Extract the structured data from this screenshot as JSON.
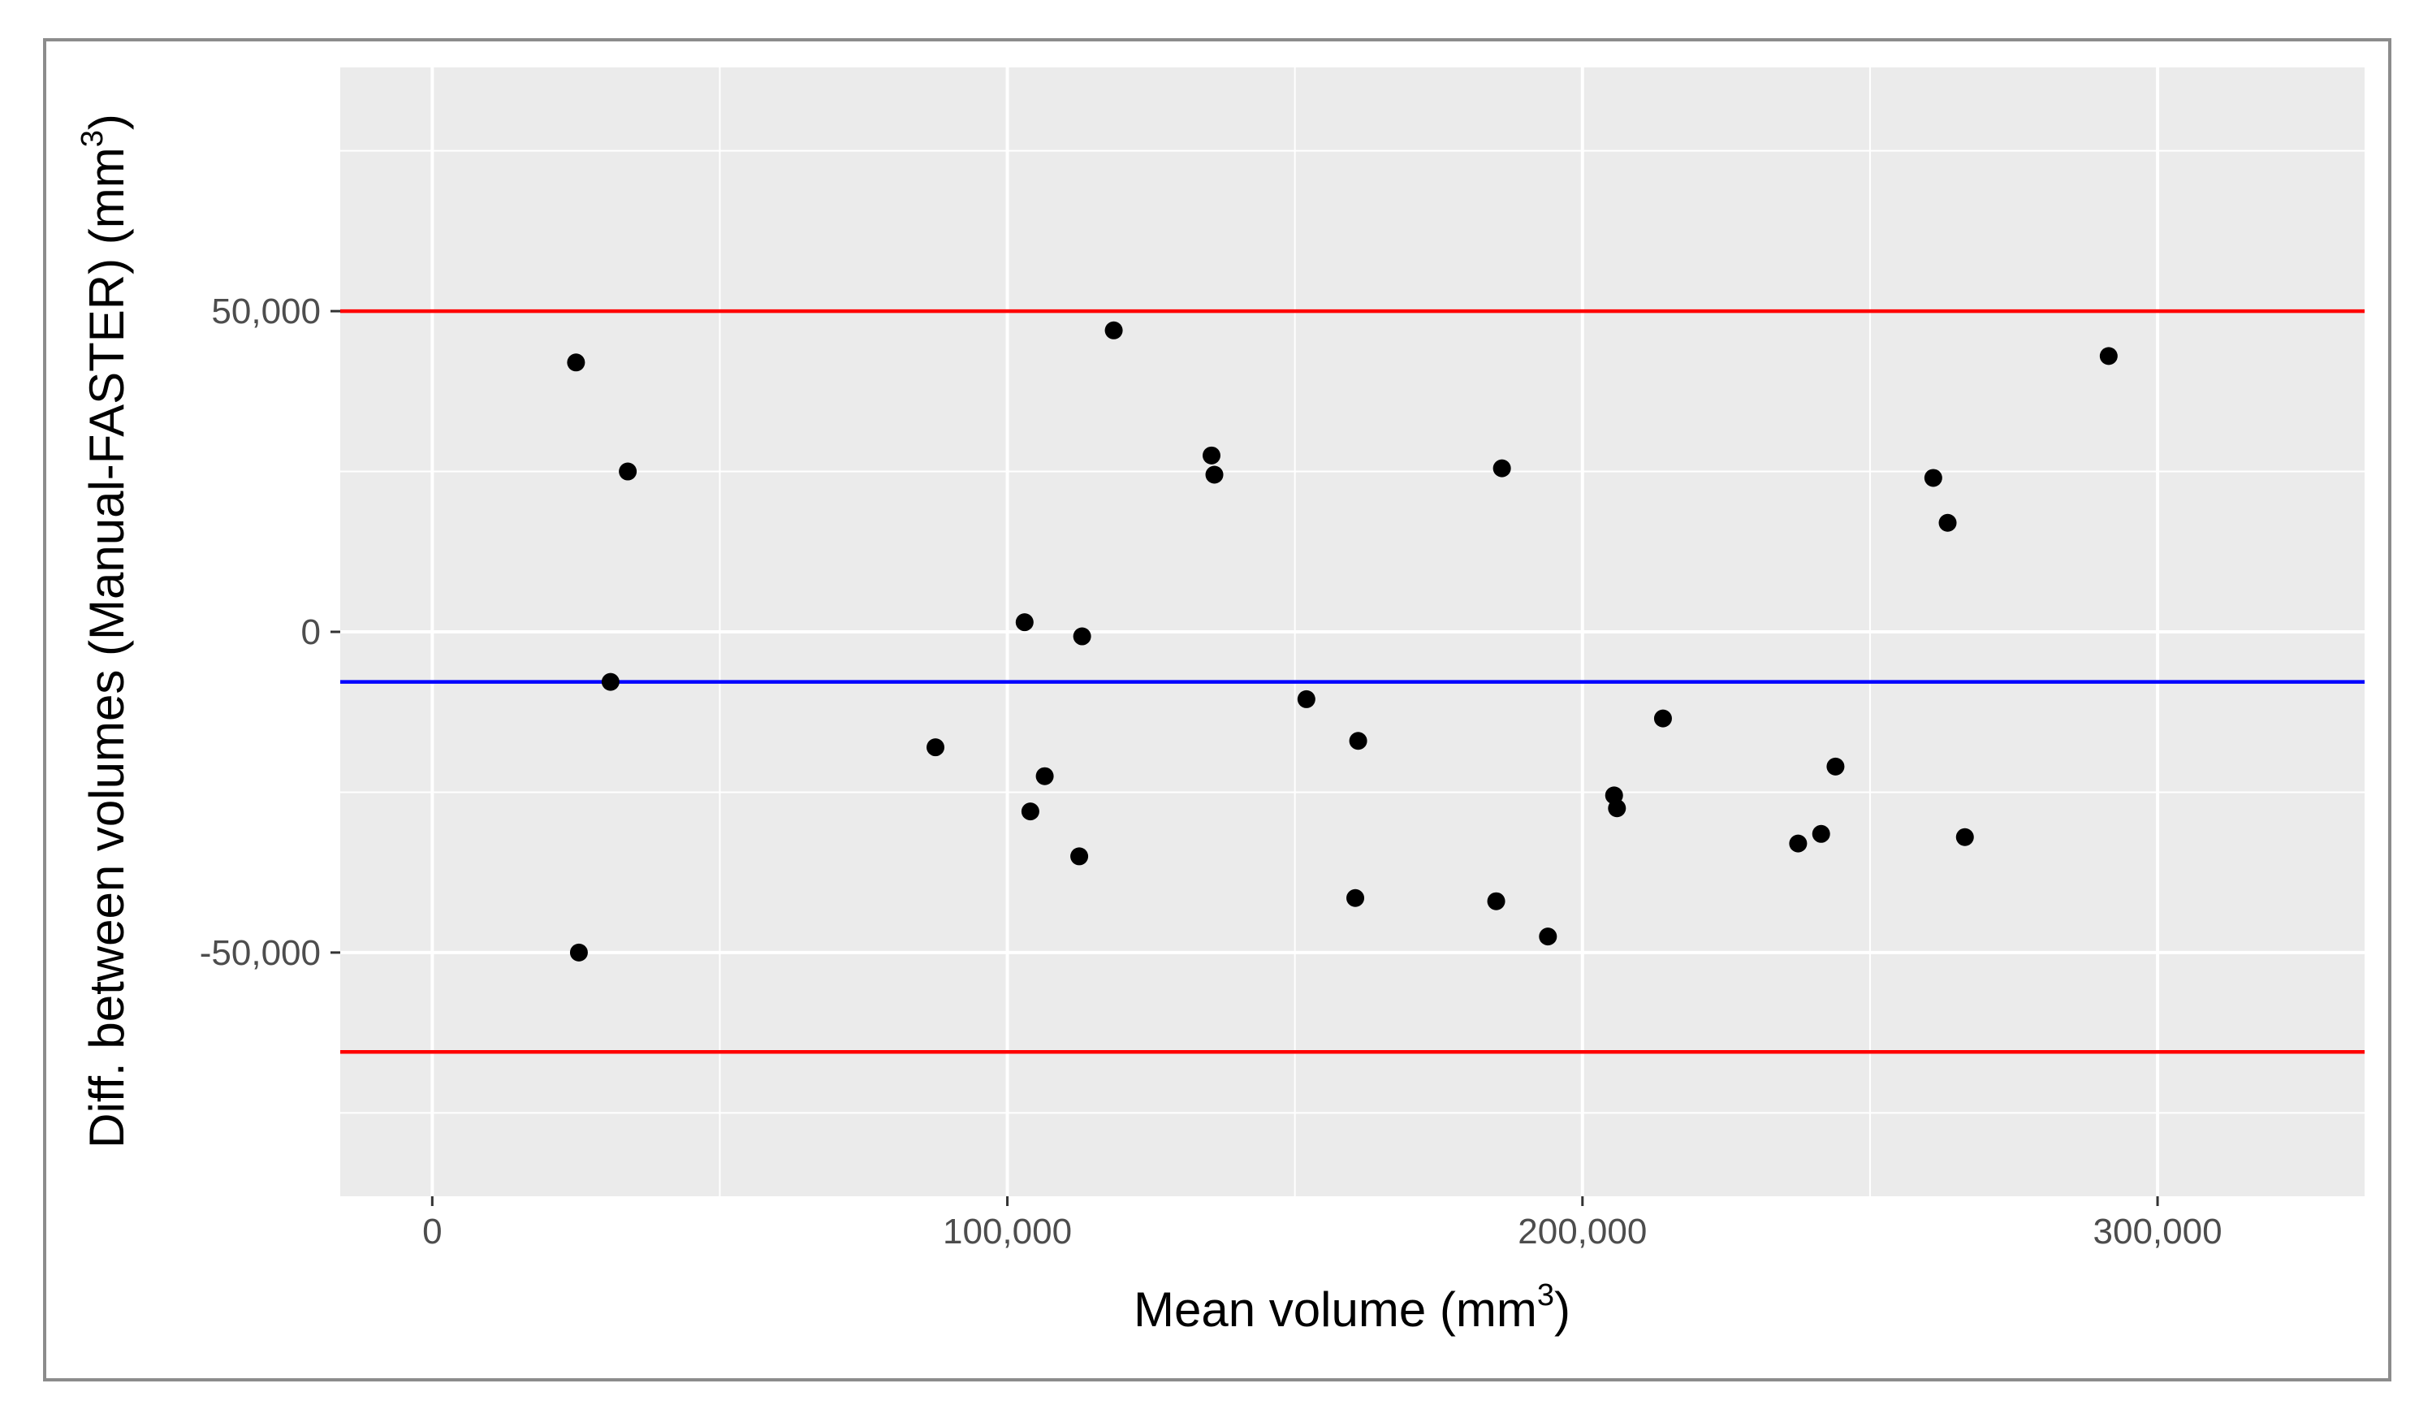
{
  "chart_data": {
    "type": "scatter",
    "xlabel": "Mean volume",
    "xlabel_unit": "(mm",
    "xlabel_exp": "3",
    "xlabel_close": ")",
    "ylabel": "Diff. between volumes (Manual-FASTER)",
    "ylabel_unit": "(mm",
    "ylabel_exp": "3",
    "ylabel_close": ")",
    "xlim": [
      -16000,
      336000
    ],
    "ylim": [
      -88000,
      88000
    ],
    "x_ticks": [
      0,
      100000,
      200000,
      300000
    ],
    "x_tick_labels": [
      "0",
      "100,000",
      "200,000",
      "300,000"
    ],
    "y_ticks": [
      -50000,
      0,
      50000
    ],
    "y_tick_labels": [
      "-50,000",
      "0",
      "50,000"
    ],
    "x_minor_breaks": [
      50000,
      150000,
      250000
    ],
    "y_minor_breaks": [
      -75000,
      -25000,
      25000,
      75000
    ],
    "grid": true,
    "panel_background": "#ebebeb",
    "reference_lines": [
      {
        "y": 50000,
        "color": "#ff0000"
      },
      {
        "y": -7800,
        "color": "#0000ff"
      },
      {
        "y": -65500,
        "color": "#ff0000"
      }
    ],
    "points": [
      {
        "x": 25000,
        "y": 42000
      },
      {
        "x": 34000,
        "y": 25000
      },
      {
        "x": 31000,
        "y": -7800
      },
      {
        "x": 25500,
        "y": -50000
      },
      {
        "x": 87500,
        "y": -18000
      },
      {
        "x": 103000,
        "y": 1500
      },
      {
        "x": 104000,
        "y": -28000
      },
      {
        "x": 106500,
        "y": -22500
      },
      {
        "x": 113000,
        "y": -700
      },
      {
        "x": 112500,
        "y": -35000
      },
      {
        "x": 118500,
        "y": 47000
      },
      {
        "x": 135500,
        "y": 27500
      },
      {
        "x": 136000,
        "y": 24500
      },
      {
        "x": 152000,
        "y": -10500
      },
      {
        "x": 161000,
        "y": -17000
      },
      {
        "x": 160500,
        "y": -41500
      },
      {
        "x": 186000,
        "y": 25500
      },
      {
        "x": 185000,
        "y": -42000
      },
      {
        "x": 194000,
        "y": -47500
      },
      {
        "x": 205500,
        "y": -25500
      },
      {
        "x": 206000,
        "y": -27500
      },
      {
        "x": 214000,
        "y": -13500
      },
      {
        "x": 237500,
        "y": -33000
      },
      {
        "x": 241500,
        "y": -31500
      },
      {
        "x": 244000,
        "y": -21000
      },
      {
        "x": 261000,
        "y": 24000
      },
      {
        "x": 263500,
        "y": 17000
      },
      {
        "x": 266500,
        "y": -32000
      },
      {
        "x": 291500,
        "y": 43000
      }
    ]
  }
}
